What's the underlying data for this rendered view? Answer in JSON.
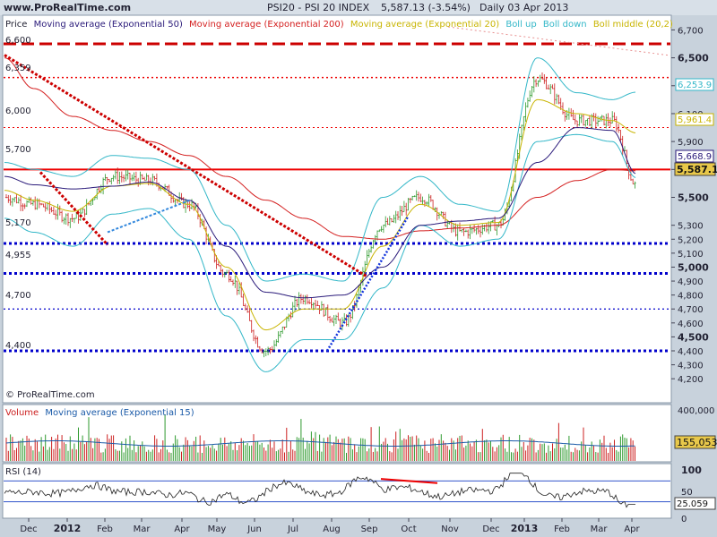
{
  "header": {
    "site": "www.ProRealTime.com",
    "symbol": "PSI20 - PSI 20 INDEX",
    "last": "5,587.13 (-3.54%)",
    "period": "Daily  03 Apr 2013",
    "copyright": "© ProRealTime.com"
  },
  "legend": {
    "price": "Price",
    "ma50": "Moving average (Exponential 50)",
    "ma200": "Moving average (Exponential 200)",
    "ma20": "Moving average (Exponential 20)",
    "boll_up": "Boll up",
    "boll_down": "Boll down",
    "boll_middle": "Boll middle (20,2)"
  },
  "colors": {
    "background": "#ffffff",
    "frame": "#c8d2dc",
    "up_candle": "#2e9a2e",
    "down_candle": "#cc2020",
    "ma50": "#2a1a7a",
    "ma200": "#d42020",
    "ma20": "#c8b400",
    "bollinger": "#33b7c8",
    "support": "#0000cc",
    "resistance": "#ee0000",
    "trend_down": "#cc0000",
    "trend_up": "#1133dd",
    "trend_light": "#3388dd"
  },
  "price_panel": {
    "axis_labels": [
      "6,700",
      "6,500",
      "6,300",
      "6,100",
      "5,900",
      "5,700",
      "5,500",
      "5,300",
      "5,200",
      "5,100",
      "5,000",
      "4,900",
      "4,800",
      "4,700",
      "4,600",
      "4,500",
      "4,400",
      "4,300",
      "4,200"
    ],
    "level_labels": [
      "6,600",
      "6,359",
      "6,000",
      "5,700",
      "5,170",
      "4,955",
      "4,700",
      "4,400"
    ],
    "badges": {
      "bb_upper": "6,253.9",
      "ma20": "5,961.4",
      "ma50": "5,668.9",
      "price": "5,587.13"
    }
  },
  "volume_panel": {
    "title_1": "Volume",
    "title_2": "Moving average (Exponential 15)",
    "axis_top": "400,000",
    "badge": "155,053"
  },
  "rsi_panel": {
    "title": "RSI (14)",
    "axis_top": "100",
    "axis_mid": "50",
    "axis_bottom": "0",
    "badge": "25.059"
  },
  "time_axis": [
    "Dec",
    "2012",
    "Feb",
    "Mar",
    "Apr",
    "May",
    "Jun",
    "Jul",
    "Aug",
    "Sep",
    "Oct",
    "Nov",
    "Dec",
    "2013",
    "Feb",
    "Mar",
    "Apr"
  ],
  "chart_data": {
    "type": "line",
    "title": "PSI20 - PSI 20 INDEX",
    "x_start": "2011-11-22",
    "x_end": "2013-04-03",
    "ylim": [
      4150,
      6750
    ],
    "y_scale": "linear",
    "grid": false,
    "series": [
      {
        "name": "Price",
        "x": [
          "2011-11",
          "2011-12",
          "2012-01",
          "2012-02",
          "2012-03",
          "2012-04",
          "2012-05",
          "2012-06",
          "2012-07",
          "2012-08",
          "2012-09",
          "2012-10",
          "2012-11",
          "2012-12",
          "2013-01",
          "2013-02",
          "2013-03",
          "2013-04-03"
        ],
        "values": [
          5500,
          5450,
          5350,
          5650,
          5620,
          5450,
          4950,
          4400,
          4780,
          4600,
          5300,
          5500,
          5250,
          5300,
          6350,
          6050,
          6050,
          5587.13
        ]
      },
      {
        "name": "Moving average (Exponential 50)",
        "values": [
          5650,
          5590,
          5560,
          5580,
          5610,
          5480,
          5150,
          4820,
          4780,
          4800,
          5000,
          5300,
          5330,
          5350,
          5750,
          6000,
          5980,
          5668.9
        ]
      },
      {
        "name": "Moving average (Exponential 200)",
        "values": [
          6500,
          6280,
          6080,
          5980,
          5900,
          5800,
          5650,
          5480,
          5350,
          5220,
          5200,
          5260,
          5280,
          5300,
          5500,
          5620,
          5700,
          5690
        ]
      },
      {
        "name": "Moving average (Exponential 20)",
        "values": [
          5550,
          5480,
          5400,
          5580,
          5600,
          5450,
          5000,
          4550,
          4700,
          4700,
          5150,
          5450,
          5300,
          5320,
          6200,
          6100,
          6050,
          5961.4
        ]
      },
      {
        "name": "Boll up",
        "values": [
          5750,
          5700,
          5650,
          5800,
          5780,
          5700,
          5300,
          4900,
          4950,
          4900,
          5500,
          5650,
          5450,
          5400,
          6500,
          6250,
          6200,
          6253.9
        ]
      },
      {
        "name": "Boll down",
        "values": [
          5350,
          5250,
          5150,
          5380,
          5420,
          5200,
          4650,
          4250,
          4480,
          4480,
          4850,
          5300,
          5150,
          5200,
          5900,
          5950,
          5900,
          5640
        ]
      }
    ],
    "horizontal_lines": [
      6600,
      6359,
      6000,
      5700,
      5170,
      4955,
      4700,
      4400
    ],
    "volume": {
      "ylim": [
        0,
        400000
      ],
      "ma15_last": 155053
    },
    "rsi": {
      "period": 14,
      "ylim": [
        0,
        100
      ],
      "bands": [
        30,
        70
      ],
      "last": 25.059
    }
  }
}
